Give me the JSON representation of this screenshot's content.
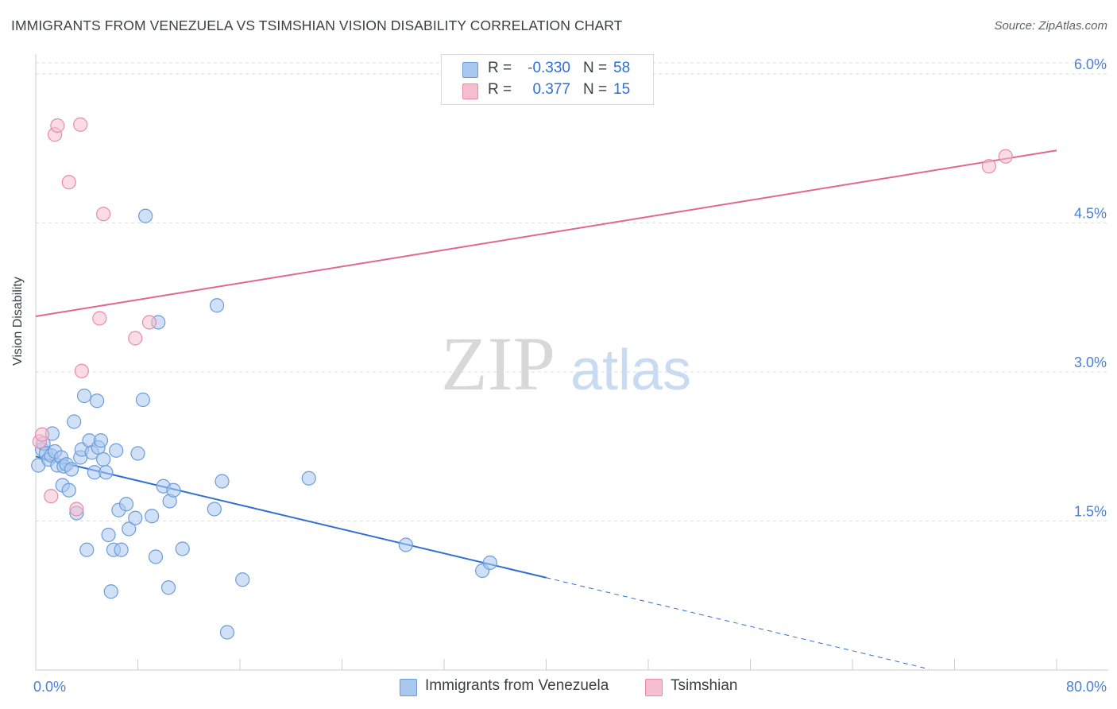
{
  "chart_data": {
    "type": "scatter",
    "title": "IMMIGRANTS FROM VENEZUELA VS TSIMSHIAN VISION DISABILITY CORRELATION CHART",
    "source": "Source: ZipAtlas.com",
    "xlabel": "",
    "ylabel": "Vision Disability",
    "xlim": [
      0,
      80
    ],
    "ylim": [
      0,
      6.2
    ],
    "x_tick_labels": [
      "0.0%",
      "80.0%"
    ],
    "y_ticks": [
      1.5,
      3.0,
      4.5,
      6.0
    ],
    "y_tick_labels": [
      "1.5%",
      "3.0%",
      "4.5%",
      "6.0%"
    ],
    "watermark": [
      "ZIP",
      "atlas"
    ],
    "colors": {
      "blue_fill": "#a9c8f0",
      "blue_stroke": "#6b9bd8",
      "blue_line": "#2f6fd0",
      "pink_fill": "#f6bfd0",
      "pink_stroke": "#e88aa8",
      "pink_line": "#e0688f",
      "grid": "#dddddd",
      "tick_label": "#4a7fd4"
    },
    "legend_stats": [
      {
        "r_label": "R =",
        "r_value": "-0.330",
        "n_label": "N =",
        "n_value": "58"
      },
      {
        "r_label": "R =",
        "r_value": "0.377",
        "n_label": "N =",
        "n_value": "15"
      }
    ],
    "series": [
      {
        "name": "Immigrants from Venezuela",
        "color": "blue",
        "trend": {
          "x0": 0,
          "y0": 2.15,
          "x1": 40,
          "y1": 0.93,
          "dash_to_x": 70,
          "dash_to_y": 0.01
        },
        "points": [
          {
            "x": 0.2,
            "y": 2.06
          },
          {
            "x": 0.5,
            "y": 2.22
          },
          {
            "x": 0.6,
            "y": 2.28
          },
          {
            "x": 0.8,
            "y": 2.18
          },
          {
            "x": 1.0,
            "y": 2.12
          },
          {
            "x": 1.2,
            "y": 2.16
          },
          {
            "x": 1.3,
            "y": 2.38
          },
          {
            "x": 1.5,
            "y": 2.2
          },
          {
            "x": 1.7,
            "y": 2.06
          },
          {
            "x": 2.0,
            "y": 2.14
          },
          {
            "x": 2.1,
            "y": 1.86
          },
          {
            "x": 2.2,
            "y": 2.05
          },
          {
            "x": 2.4,
            "y": 2.07
          },
          {
            "x": 2.6,
            "y": 1.81
          },
          {
            "x": 2.8,
            "y": 2.02
          },
          {
            "x": 3.0,
            "y": 2.5
          },
          {
            "x": 3.2,
            "y": 1.58
          },
          {
            "x": 3.5,
            "y": 2.14
          },
          {
            "x": 3.6,
            "y": 2.22
          },
          {
            "x": 3.8,
            "y": 2.76
          },
          {
            "x": 4.0,
            "y": 1.21
          },
          {
            "x": 4.2,
            "y": 2.31
          },
          {
            "x": 4.4,
            "y": 2.19
          },
          {
            "x": 4.6,
            "y": 1.99
          },
          {
            "x": 4.8,
            "y": 2.71
          },
          {
            "x": 4.9,
            "y": 2.24
          },
          {
            "x": 5.1,
            "y": 2.31
          },
          {
            "x": 5.3,
            "y": 2.12
          },
          {
            "x": 5.5,
            "y": 1.99
          },
          {
            "x": 5.7,
            "y": 1.36
          },
          {
            "x": 5.9,
            "y": 0.79
          },
          {
            "x": 6.1,
            "y": 1.21
          },
          {
            "x": 6.3,
            "y": 2.21
          },
          {
            "x": 6.5,
            "y": 1.61
          },
          {
            "x": 6.7,
            "y": 1.21
          },
          {
            "x": 7.1,
            "y": 1.67
          },
          {
            "x": 7.3,
            "y": 1.42
          },
          {
            "x": 7.8,
            "y": 1.53
          },
          {
            "x": 8.0,
            "y": 2.18
          },
          {
            "x": 8.4,
            "y": 2.72
          },
          {
            "x": 8.6,
            "y": 4.57
          },
          {
            "x": 9.1,
            "y": 1.55
          },
          {
            "x": 9.4,
            "y": 1.14
          },
          {
            "x": 9.6,
            "y": 3.5
          },
          {
            "x": 10.0,
            "y": 1.85
          },
          {
            "x": 10.4,
            "y": 0.83
          },
          {
            "x": 10.5,
            "y": 1.7
          },
          {
            "x": 10.8,
            "y": 1.81
          },
          {
            "x": 11.5,
            "y": 1.22
          },
          {
            "x": 14.0,
            "y": 1.62
          },
          {
            "x": 14.2,
            "y": 3.67
          },
          {
            "x": 14.6,
            "y": 1.9
          },
          {
            "x": 15.0,
            "y": 0.38
          },
          {
            "x": 16.2,
            "y": 0.91
          },
          {
            "x": 21.4,
            "y": 1.93
          },
          {
            "x": 29.0,
            "y": 1.26
          },
          {
            "x": 35.0,
            "y": 1.0
          },
          {
            "x": 35.6,
            "y": 1.08
          }
        ]
      },
      {
        "name": "Tsimshian",
        "color": "pink",
        "trend": {
          "x0": 0,
          "y0": 3.56,
          "x1": 80,
          "y1": 5.23
        },
        "points": [
          {
            "x": 0.3,
            "y": 2.3
          },
          {
            "x": 0.5,
            "y": 2.37
          },
          {
            "x": 1.2,
            "y": 1.75
          },
          {
            "x": 1.5,
            "y": 5.39
          },
          {
            "x": 1.7,
            "y": 5.48
          },
          {
            "x": 2.6,
            "y": 4.91
          },
          {
            "x": 3.2,
            "y": 1.62
          },
          {
            "x": 3.5,
            "y": 5.49
          },
          {
            "x": 3.6,
            "y": 3.01
          },
          {
            "x": 5.0,
            "y": 3.54
          },
          {
            "x": 5.3,
            "y": 4.59
          },
          {
            "x": 7.8,
            "y": 3.34
          },
          {
            "x": 8.9,
            "y": 3.5
          },
          {
            "x": 74.7,
            "y": 5.07
          },
          {
            "x": 76.0,
            "y": 5.17
          }
        ]
      }
    ]
  }
}
